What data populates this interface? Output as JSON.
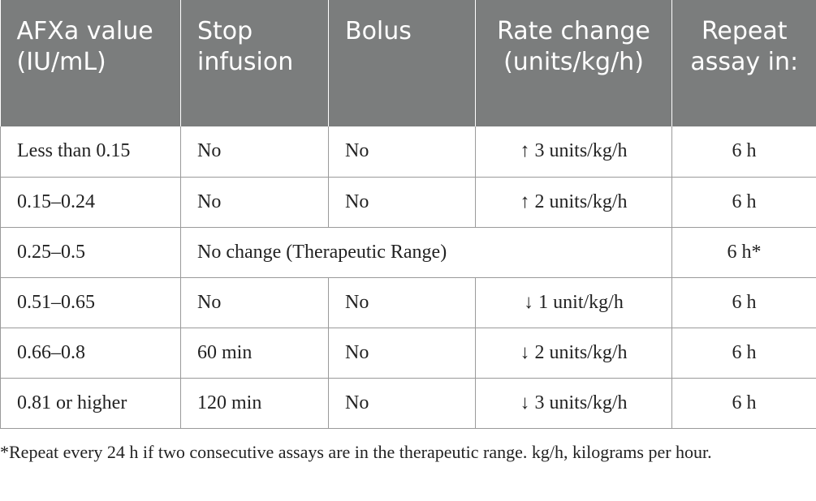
{
  "table": {
    "headers": [
      "AFXa value (IU/​mL)",
      "Stop infusion",
      "Bolus",
      "Rate change (units/kg/h)",
      "Repeat assay in:"
    ],
    "rows": [
      {
        "afxa": "Less than 0.15",
        "stop": "No",
        "bolus": "No",
        "rate": "↑ 3 units/kg/h",
        "repeat": "6 h"
      },
      {
        "afxa": "0.15–0.24",
        "stop": "No",
        "bolus": "No",
        "rate": "↑ 2 units/kg/h",
        "repeat": "6 h"
      },
      {
        "afxa": "0.25–0.5",
        "merged": "No change (Therapeutic Range)",
        "repeat": "6 h*"
      },
      {
        "afxa": "0.51–0.65",
        "stop": "No",
        "bolus": "No",
        "rate": "↓ 1 unit/kg/h",
        "repeat": "6 h"
      },
      {
        "afxa": "0.66–0.8",
        "stop": "60 min",
        "bolus": "No",
        "rate": "↓ 2 units/kg/h",
        "repeat": "6 h"
      },
      {
        "afxa": "0.81 or higher",
        "stop": "120 min",
        "bolus": "No",
        "rate": "↓ 3 units/kg/h",
        "repeat": "6 h"
      }
    ]
  },
  "footnote": "*Repeat every 24 h if two consecutive assays are in the therapeutic range. kg/h, kilograms per hour."
}
